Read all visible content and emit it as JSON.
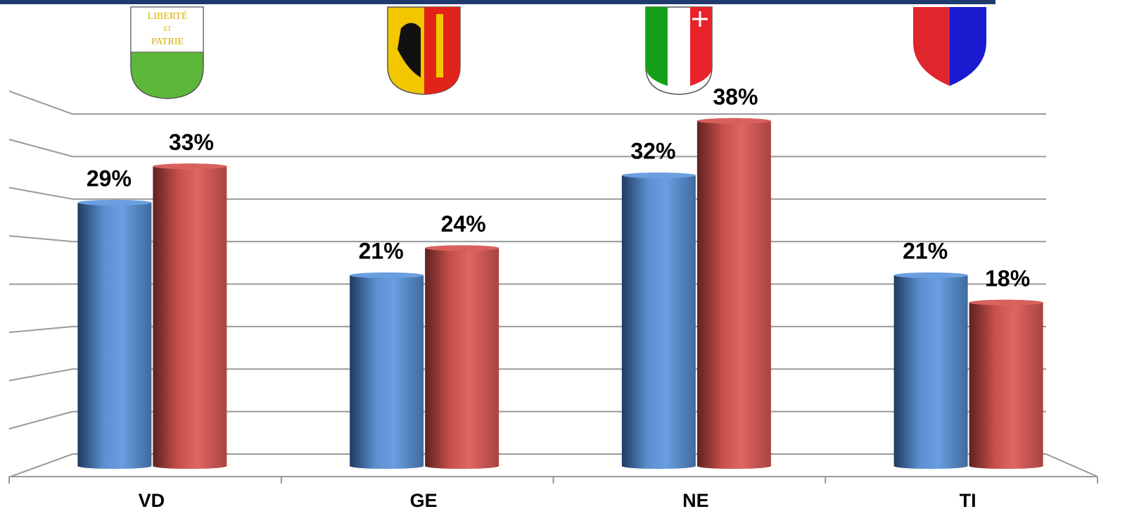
{
  "chart_data": {
    "type": "bar",
    "categories": [
      "VD",
      "GE",
      "NE",
      "TI"
    ],
    "series": [
      {
        "color": "#4f81bd",
        "values": [
          29,
          21,
          32,
          21
        ],
        "value_labels": [
          "29%",
          "21%",
          "32%",
          "21%"
        ]
      },
      {
        "color": "#c0504d",
        "values": [
          33,
          24,
          38,
          18
        ],
        "value_labels": [
          "33%",
          "24%",
          "38%",
          "18%"
        ]
      }
    ],
    "ylim": [
      0,
      40
    ],
    "yticks": [
      0,
      5,
      10,
      15,
      20,
      25,
      30,
      35,
      40
    ],
    "grid": true
  }
}
